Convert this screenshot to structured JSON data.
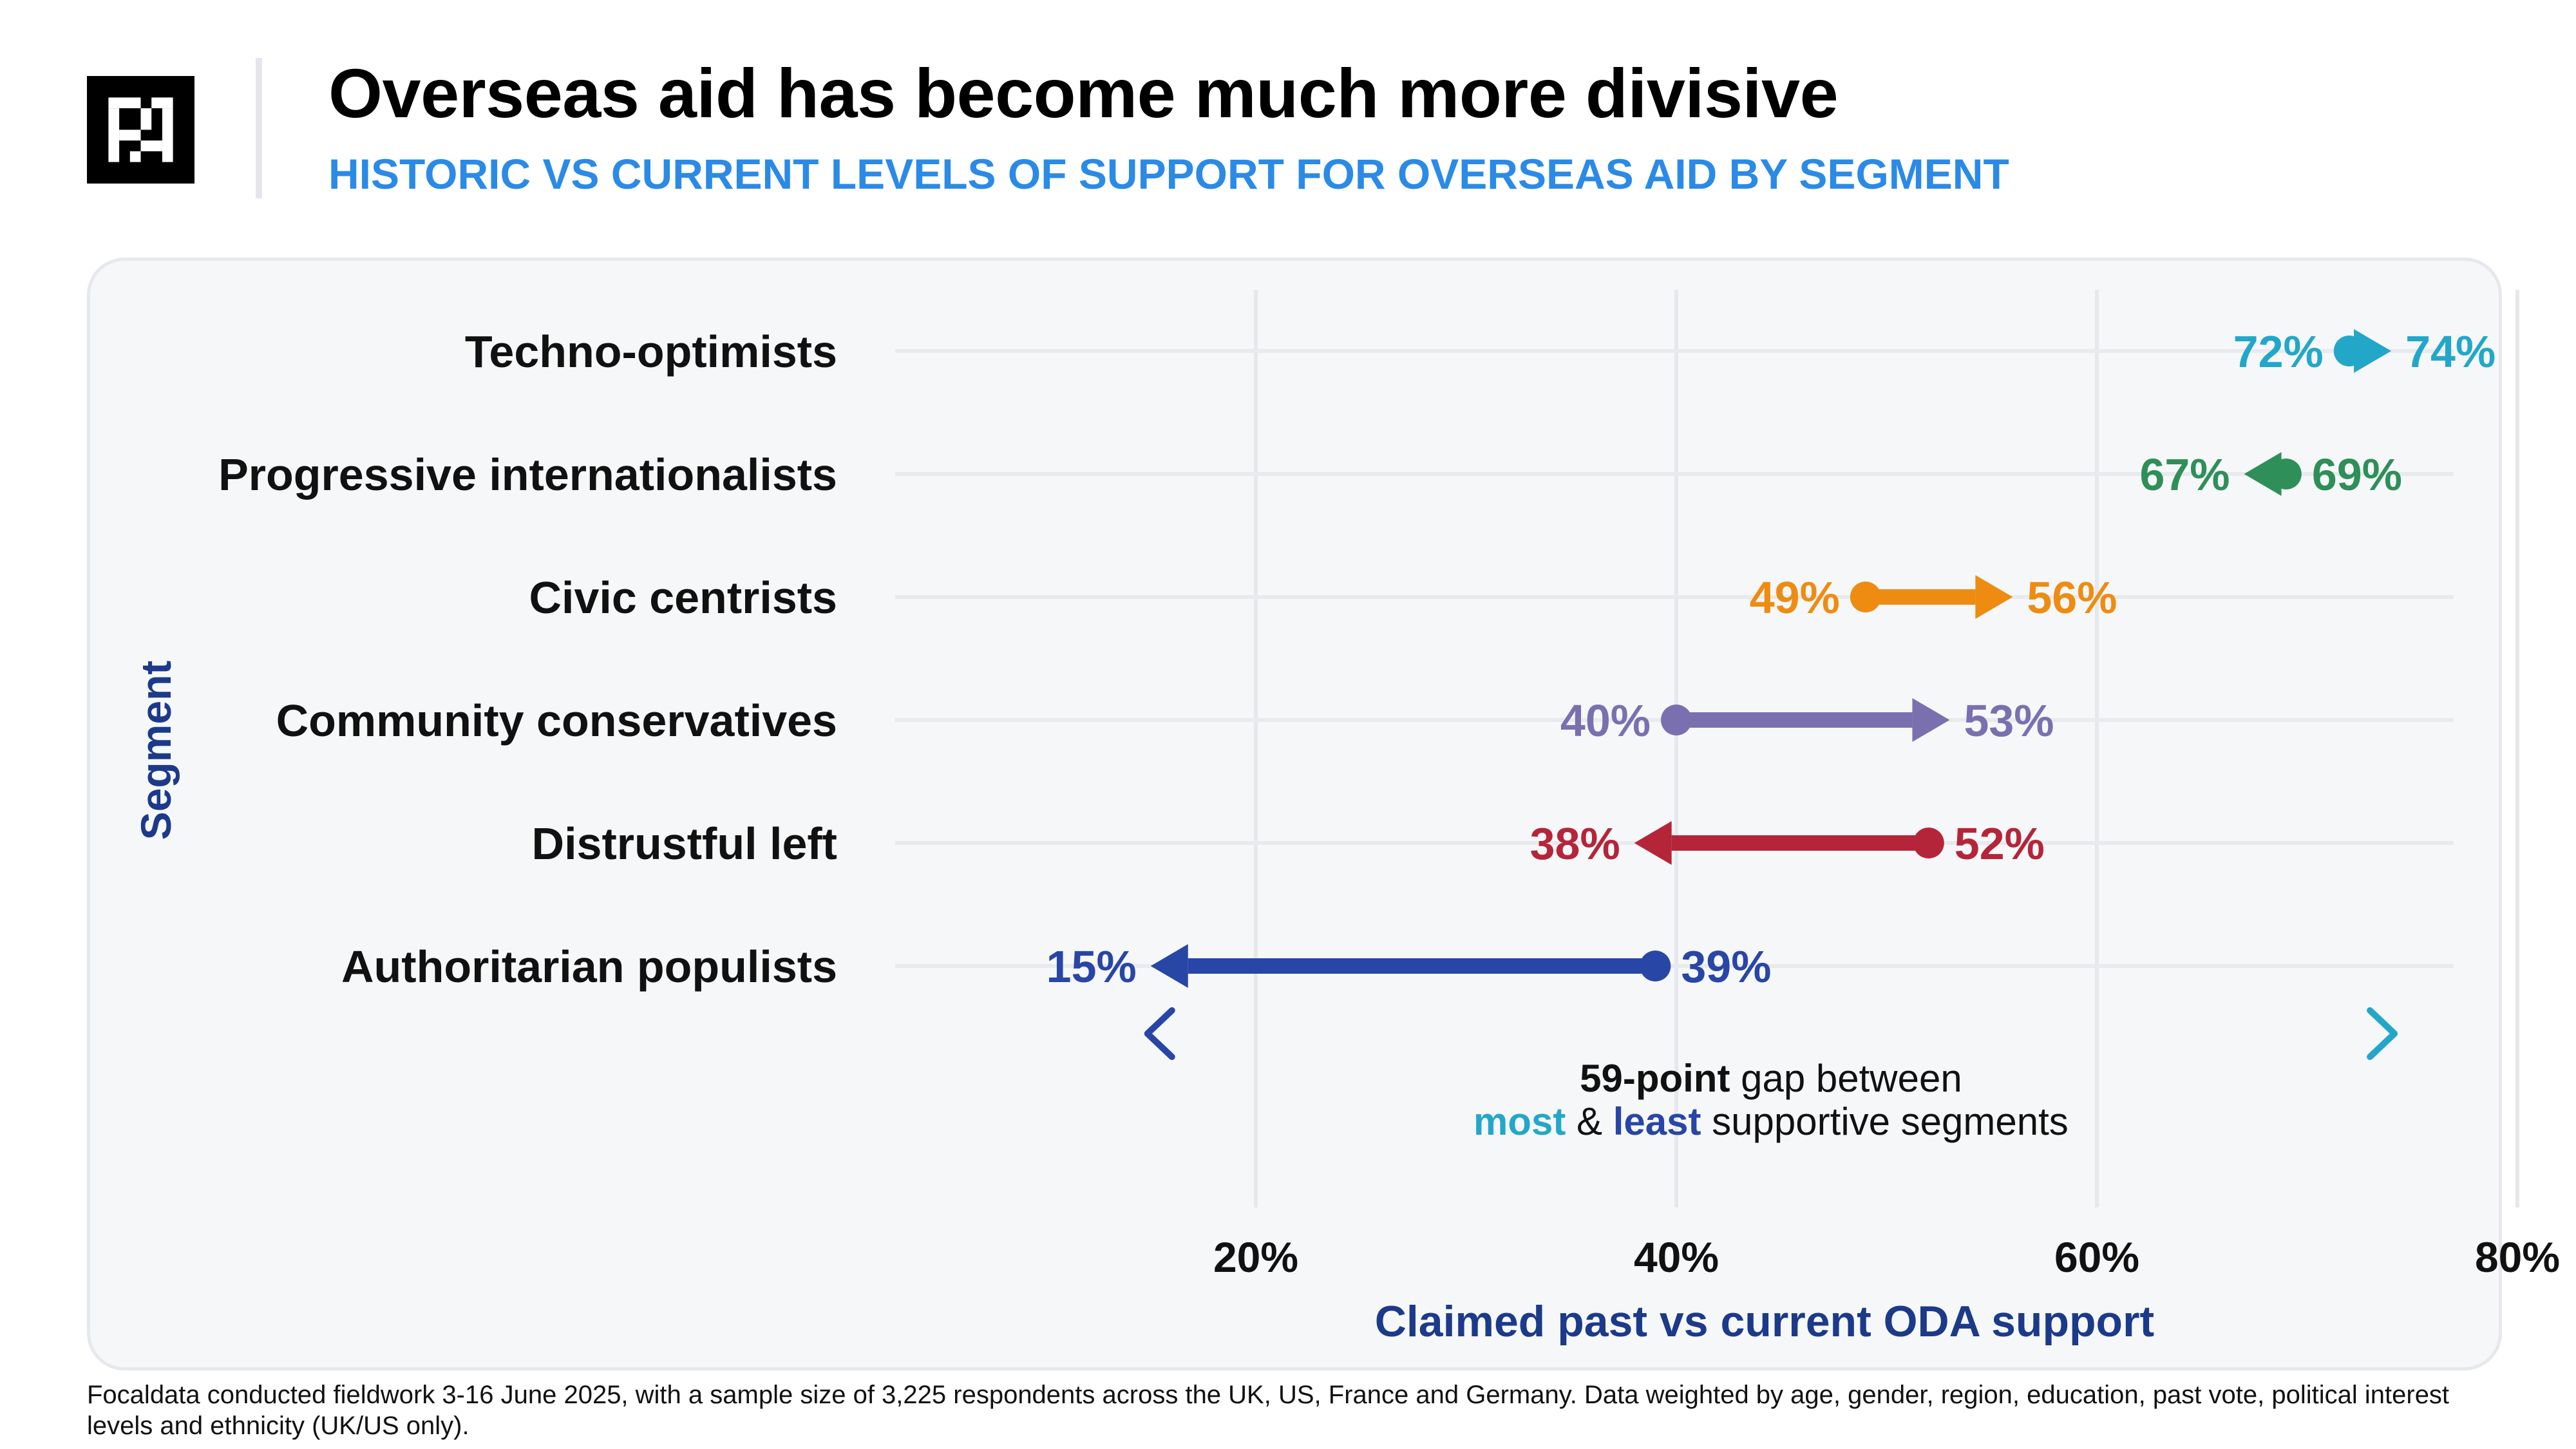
{
  "header": {
    "title": "Overseas aid has become much more divisive",
    "subtitle": "HISTORIC VS CURRENT LEVELS OF SUPPORT FOR OVERSEAS AID BY SEGMENT"
  },
  "logo": {
    "icon": "focaldata-logo-icon"
  },
  "chart_data": {
    "type": "dumbbell",
    "xlabel": "Claimed past vs current ODA support",
    "ylabel": "Segment",
    "xlim": [
      0,
      80
    ],
    "xticks": [
      20,
      40,
      60,
      80
    ],
    "xtick_labels": [
      "20%",
      "40%",
      "60%",
      "80%"
    ],
    "grid": true,
    "encoding": "dot = past, arrowhead = current",
    "segments": [
      {
        "name": "Techno-optimists",
        "past": 72,
        "current": 74,
        "past_label": "72%",
        "current_label": "74%",
        "color": "#23a7c9"
      },
      {
        "name": "Progressive internationalists",
        "past": 69,
        "current": 67,
        "past_label": "69%",
        "current_label": "67%",
        "color": "#2e8f58"
      },
      {
        "name": "Civic centrists",
        "past": 49,
        "current": 56,
        "past_label": "49%",
        "current_label": "56%",
        "color": "#ee8c12"
      },
      {
        "name": "Community conservatives",
        "past": 40,
        "current": 53,
        "past_label": "40%",
        "current_label": "53%",
        "color": "#7a70b0"
      },
      {
        "name": "Distrustful left",
        "past": 52,
        "current": 38,
        "past_label": "52%",
        "current_label": "38%",
        "color": "#b52539"
      },
      {
        "name": "Authoritarian populists",
        "past": 39,
        "current": 15,
        "past_label": "39%",
        "current_label": "15%",
        "color": "#2846a6"
      }
    ],
    "gap_annotation": {
      "from": 15,
      "to": 74,
      "from_color": "#2846a6",
      "to_color": "#23a7c9",
      "bold_part": "59-point",
      "line1_rest": " gap between",
      "most": "most",
      "amp": " & ",
      "least": "least",
      "line2_rest": " supportive segments"
    }
  },
  "footnote": "Focaldata conducted fieldwork 3-16 June 2025, with a sample size of 3,225 respondents across the UK, US, France and Germany. Data weighted by age, gender, region, education, past vote, political interest levels and ethnicity (UK/US only).",
  "colors": {
    "subtitle": "#2b8ae6",
    "axis_title": "#1c3a8a",
    "panel_bg": "#f6f7f9"
  }
}
